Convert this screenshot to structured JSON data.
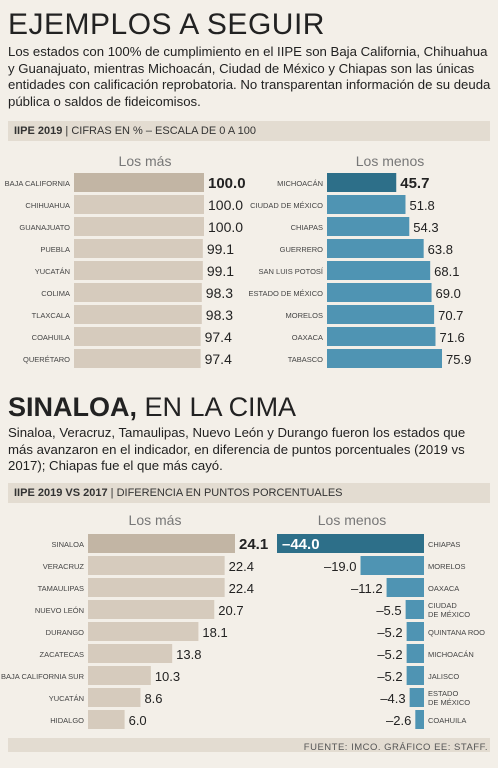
{
  "section1": {
    "title": "EJEMPLOS A SEGUIR",
    "text": "Los estados con 100% de cumplimiento en el IIPE son Baja California, Chihuahua y Guanajuato, mientras Michoacán, Ciudad de México y Chiapas son las únicas entidades con calificación reprobatoria. No transparentan información de su deuda pública o saldos de fideicomisos.",
    "band_bold": "IIPE 2019",
    "band_rest": "CIFRAS EN % – ESCALA DE 0 A 100"
  },
  "section2": {
    "title_bold": "SINALOA,",
    "title_rest": " EN LA CIMA",
    "text": "Sinaloa, Veracruz, Tamaulipas, Nuevo León y Durango fueron los estados que más avanzaron en el indicador, en diferencia de puntos porcentuales (2019 vs 2017); Chiapas fue el que más cayó.",
    "band_bold": "IIPE 2019 VS 2017",
    "band_rest": "DIFERENCIA EN PUNTOS PORCENTUALES"
  },
  "source": "FUENTE: IMCO. GRÁFICO EE: STAFF.",
  "colors": {
    "tan": "#d6cbbd",
    "tan_top": "#c2b5a4",
    "blue": "#4f94b3",
    "blue_top": "#2d6f89"
  },
  "chart_data": [
    {
      "type": "bar",
      "subtitle": "Los más",
      "categories": [
        "BAJA CALIFORNIA",
        "CHIHUAHUA",
        "GUANAJUATO",
        "PUEBLA",
        "YUCATÁN",
        "COLIMA",
        "TLAXCALA",
        "COAHUILA",
        "QUERÉTARO"
      ],
      "values": [
        100.0,
        100.0,
        100.0,
        99.1,
        99.1,
        98.3,
        98.3,
        97.4,
        97.4
      ],
      "labels": [
        "100.0",
        "100.0",
        "100.0",
        "99.1",
        "99.1",
        "98.3",
        "98.3",
        "97.4",
        "97.4"
      ]
    },
    {
      "type": "bar",
      "subtitle": "Los menos",
      "categories": [
        "MICHOACÁN",
        "CIUDAD DE MÉXICO",
        "CHIAPAS",
        "GUERRERO",
        "SAN LUIS POTOSÍ",
        "ESTADO DE MÉXICO",
        "MORELOS",
        "OAXACA",
        "TABASCO"
      ],
      "values": [
        45.7,
        51.8,
        54.3,
        63.8,
        68.1,
        69.0,
        70.7,
        71.6,
        75.9
      ],
      "labels": [
        "45.7",
        "51.8",
        "54.3",
        "63.8",
        "68.1",
        "69.0",
        "70.7",
        "71.6",
        "75.9"
      ]
    },
    {
      "type": "bar",
      "subtitle": "Los más",
      "categories": [
        "SINALOA",
        "VERACRUZ",
        "TAMAULIPAS",
        "NUEVO LEÓN",
        "DURANGO",
        "ZACATECAS",
        "BAJA CALIFORNIA SUR",
        "YUCATÁN",
        "HIDALGO"
      ],
      "values": [
        24.1,
        22.4,
        22.4,
        20.7,
        18.1,
        13.8,
        10.3,
        8.6,
        6.0
      ],
      "labels": [
        "24.1",
        "22.4",
        "22.4",
        "20.7",
        "18.1",
        "13.8",
        "10.3",
        "8.6",
        "6.0"
      ]
    },
    {
      "type": "bar",
      "subtitle": "Los menos",
      "categories": [
        [
          "CHIAPAS"
        ],
        [
          "MORELOS"
        ],
        [
          "OAXACA"
        ],
        [
          "CIUDAD",
          "DE MÉXICO"
        ],
        [
          "QUINTANA ROO"
        ],
        [
          "MICHOACÁN"
        ],
        [
          "JALISCO"
        ],
        [
          "ESTADO",
          "DE MÉXICO"
        ],
        [
          "COAHUILA"
        ]
      ],
      "values": [
        -44.0,
        -19.0,
        -11.2,
        -5.5,
        -5.2,
        -5.2,
        -5.2,
        -4.3,
        -2.6
      ],
      "labels": [
        "–44.0",
        "–19.0",
        "–11.2",
        "–5.5",
        "–5.2",
        "–5.2",
        "–5.2",
        "–4.3",
        "–2.6"
      ]
    }
  ]
}
